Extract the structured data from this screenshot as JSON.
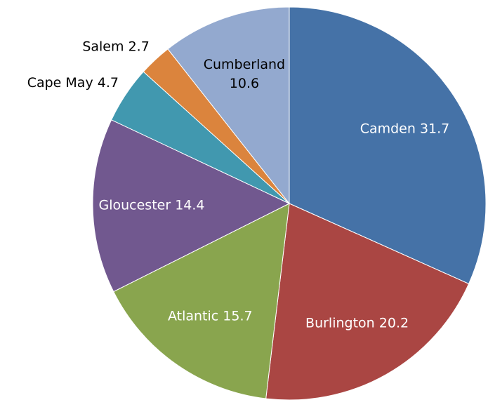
{
  "chart_data": {
    "type": "pie",
    "categories": [
      "Camden",
      "Burlington",
      "Atlantic",
      "Gloucester",
      "Cape May",
      "Salem",
      "Cumberland"
    ],
    "values": [
      31.7,
      20.2,
      15.7,
      14.4,
      4.7,
      2.7,
      10.6
    ],
    "colors": [
      "#4572a7",
      "#aa4643",
      "#89a54e",
      "#71588f",
      "#4198af",
      "#db843d",
      "#93a9cf"
    ]
  }
}
